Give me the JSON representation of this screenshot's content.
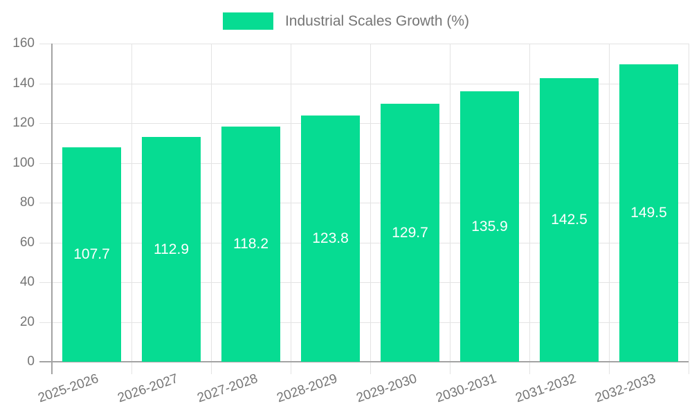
{
  "legend": {
    "label": "Industrial Scales Growth (%)"
  },
  "chart_data": {
    "type": "bar",
    "title": "Industrial Scales Growth (%)",
    "legend": "Industrial Scales Growth (%)",
    "legend_position": "top-center",
    "categories": [
      "2025-2026",
      "2026-2027",
      "2027-2028",
      "2028-2029",
      "2029-2030",
      "2030-2031",
      "2031-2032",
      "2032-2033"
    ],
    "values": [
      107.7,
      112.9,
      118.2,
      123.8,
      129.7,
      135.9,
      142.5,
      149.5
    ],
    "value_labels": [
      "107.7",
      "112.9",
      "118.2",
      "123.8",
      "129.7",
      "135.9",
      "142.5",
      "149.5"
    ],
    "xlabel": "",
    "ylabel": "",
    "ylim": [
      0,
      160
    ],
    "yticks": [
      0,
      20,
      40,
      60,
      80,
      100,
      120,
      140,
      160
    ],
    "grid": true,
    "bar_label_position": "center-inside"
  },
  "colors": {
    "bar": "#06DC92",
    "text": "#757575",
    "grid": "#e3e3e3",
    "axis": "#a3a3a3",
    "value_label": "#ffffff",
    "background": "#ffffff"
  }
}
